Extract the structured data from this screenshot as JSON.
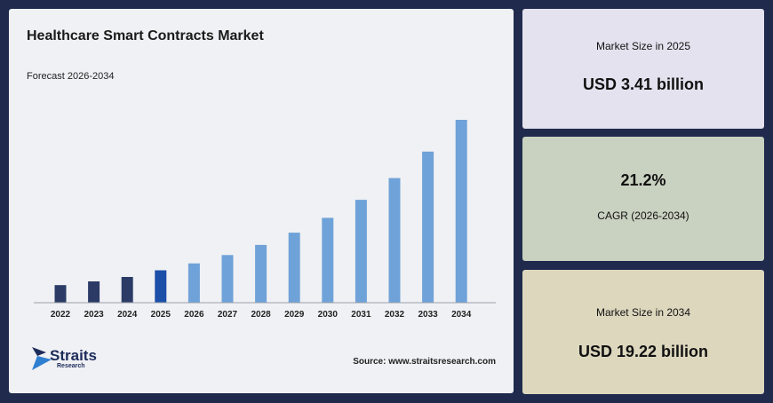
{
  "colors": {
    "historical": "#2b3b66",
    "base_year": "#1b4fa8",
    "forecast": "#6fa2d8",
    "background": "#1f2a4d"
  },
  "chart_data": {
    "type": "bar",
    "title": "Healthcare Smart Contracts Market",
    "subtitle": "Forecast 2026-2034",
    "categories": [
      "2022",
      "2023",
      "2024",
      "2025",
      "2026",
      "2027",
      "2028",
      "2029",
      "2030",
      "2031",
      "2032",
      "2033",
      "2034"
    ],
    "values": [
      1.85,
      2.24,
      2.71,
      3.41,
      4.13,
      5.01,
      6.07,
      7.36,
      8.92,
      10.81,
      13.1,
      15.88,
      19.22
    ],
    "bar_colors": [
      "#2b3b66",
      "#2b3b66",
      "#2b3b66",
      "#1b4fa8",
      "#6fa2d8",
      "#6fa2d8",
      "#6fa2d8",
      "#6fa2d8",
      "#6fa2d8",
      "#6fa2d8",
      "#6fa2d8",
      "#6fa2d8",
      "#6fa2d8"
    ],
    "ylim": [
      0,
      20
    ],
    "grid": false,
    "legend": "none"
  },
  "source": "Source: www.straitsresearch.com",
  "logo": {
    "name": "Straits",
    "sub": "Research",
    "icon": "straits-logo-icon"
  },
  "cards": [
    {
      "label": "Market Size in 2025",
      "value": "USD 3.41 billion"
    },
    {
      "value": "21.2%",
      "label": "CAGR (2026-2034)"
    },
    {
      "label": "Market Size in 2034",
      "value": "USD 19.22 billion"
    }
  ]
}
